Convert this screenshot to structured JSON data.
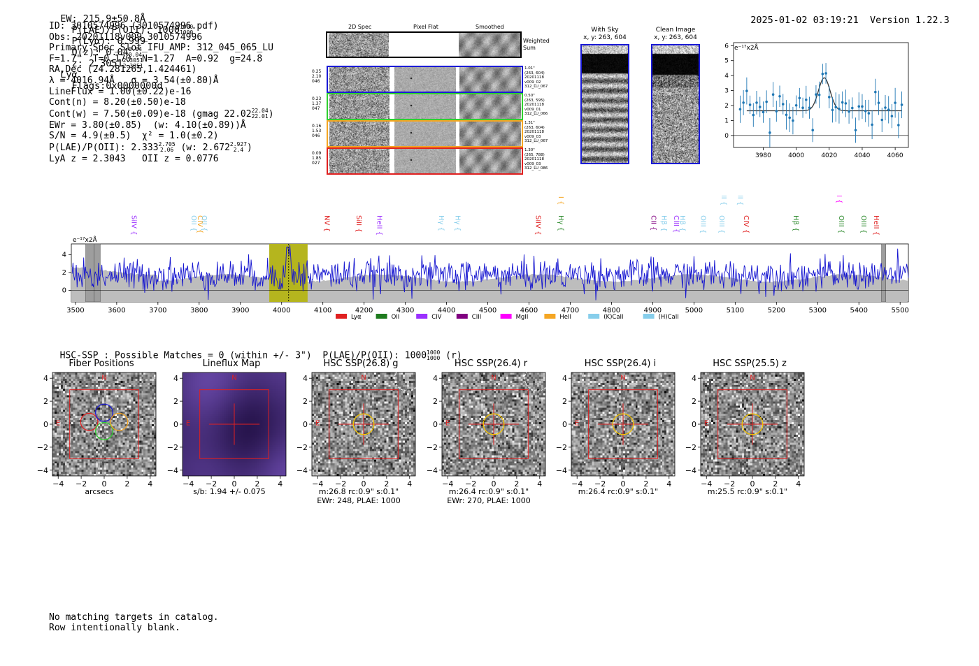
{
  "header": {
    "ew": "EW: 215.9±50.8Å",
    "plae_label": "P(LAE)/P(OII): 1000",
    "plae_hi": "1000",
    "plae_lo": "1000",
    "plya": "P(Lyα): 0.999",
    "qz_label": "Q(z): 0.04",
    "qz_hi": "0.04",
    "qz_lo": "0.04",
    "z_label": "z: 2.3051",
    "z_hi": "2.3051",
    "z_lo": "2.3051",
    "z_line": "Lyα",
    "flags": "Flags:0x0000000d",
    "timestamp": "2025-01-02 03:19:21",
    "version": "Version 1.22.3"
  },
  "info": {
    "lines": [
      "ID: 3010574996 (3010574996.pdf)",
      "Obs: 20201118v009_3010574996",
      "Primary Spec_Slot_IFU_AMP: 312_045_065_LU",
      "F=1.7\"  T=0.170  N=1.27  A=0.92  g=24.8",
      "RA,Dec (24.281265,1.424461)",
      "λ = 4016.94Å   σ = 3.54(±0.80)Å",
      "LineFlux = 1.00(±0.22)e-16",
      "Cont(n) = 8.20(±0.50)e-18",
      "Cont(w) = 7.50(±0.09)e-18 (gmag 22.02",
      "EWr = 3.80(±0.85)  (w: 4.10(±0.89))Å",
      "S/N = 4.9(±0.5)  χ² = 1.0(±0.2)",
      "P(LAE)/P(OII): 2.333",
      "LyA z = 2.3043   OII z = 0.0776"
    ],
    "gmag_hi": "22.04",
    "gmag_lo": "22.01",
    "plae_hi": "2.705",
    "plae_lo": "2.06",
    "plae_w": "(w: 2.672",
    "plae_w_hi": "2.927",
    "plae_w_lo": "2.4",
    "plae_w_close": ")"
  },
  "spec2d": {
    "col_titles": [
      "2D Spec",
      "Pixel Flat",
      "Smoothed"
    ],
    "weighted_sum": "Weighted Sum",
    "rows": [
      {
        "left": "0.25\n2.10\n046",
        "right": "1.01\"\n(263, 604)\n20201118\nv009_02\n312_LU_067",
        "color": "#1a1ad6"
      },
      {
        "left": "0.23\n1.37\n047",
        "right": "0.50\"\n(263, 595)\n20201118\nv009_01\n312_LU_066",
        "color": "#2fd02f"
      },
      {
        "left": "0.16\n1.53\n046",
        "right": "1.31\"\n(263, 604)\n20201118\nv009_03\n312_LU_067",
        "color": "#f5a623"
      },
      {
        "left": "0.09\n1.85\n027",
        "right": "1.30\"\n(265, 788)\n20201118\nv009_03\n312_LU_086",
        "color": "#e02020"
      }
    ]
  },
  "sky": {
    "with_sky_title": "With Sky",
    "with_sky_xy": "x, y: 263, 604",
    "clean_title": "Clean Image",
    "clean_xy": "x, y: 263, 604"
  },
  "zoom_plot": {
    "unit_label": "e⁻¹⁷x2Å",
    "x_ticks": [
      "3980",
      "4000",
      "4020",
      "4040",
      "4060"
    ],
    "y_ticks": [
      "0",
      "1",
      "2",
      "3",
      "4",
      "5",
      "6"
    ]
  },
  "full_spec": {
    "unit_label": "e⁻¹⁷x2Å",
    "x_ticks": [
      "3500",
      "3600",
      "3700",
      "3800",
      "3900",
      "4000",
      "4100",
      "4200",
      "4300",
      "4400",
      "4500",
      "4600",
      "4700",
      "4800",
      "4900",
      "5000",
      "5100",
      "5200",
      "5300",
      "5400",
      "5500"
    ],
    "y_ticks": [
      "0",
      "2",
      "4"
    ],
    "line_labels": [
      {
        "text": "SiIV",
        "w": 3630,
        "color": "#9b30ff",
        "tier": 1
      },
      {
        "text": "OII",
        "w": 3775,
        "color": "#87ceeb",
        "tier": 1
      },
      {
        "text": "CIV",
        "w": 3790,
        "color": "#f5a623",
        "tier": 1
      },
      {
        "text": "OII",
        "w": 3800,
        "color": "#87ceeb",
        "tier": 1
      },
      {
        "text": "NV",
        "w": 4098,
        "color": "#e02020",
        "tier": 1
      },
      {
        "text": "SiII",
        "w": 4175,
        "color": "#e02020",
        "tier": 1
      },
      {
        "text": "HeII",
        "w": 4225,
        "color": "#9b30ff",
        "tier": 1
      },
      {
        "text": "Hγ",
        "w": 4375,
        "color": "#87ceeb",
        "tier": 1
      },
      {
        "text": "Hγ",
        "w": 4415,
        "color": "#87ceeb",
        "tier": 1
      },
      {
        "text": "SiIV",
        "w": 4610,
        "color": "#e02020",
        "tier": 1
      },
      {
        "text": "Hγ",
        "w": 4665,
        "color": "#2e8b2e",
        "tier": 1
      },
      {
        "text": "CIII",
        "w": 4665,
        "color": "#f5a623",
        "tier": 0
      },
      {
        "text": "CII",
        "w": 4890,
        "color": "#800080",
        "tier": 1
      },
      {
        "text": "Hβ",
        "w": 4915,
        "color": "#87ceeb",
        "tier": 1
      },
      {
        "text": "CIII",
        "w": 4945,
        "color": "#9b30ff",
        "tier": 1
      },
      {
        "text": "Hβ",
        "w": 4960,
        "color": "#87ceeb",
        "tier": 1
      },
      {
        "text": "OIII",
        "w": 5010,
        "color": "#87ceeb",
        "tier": 1
      },
      {
        "text": "OIII",
        "w": 5055,
        "color": "#87ceeb",
        "tier": 1
      },
      {
        "text": "OIII",
        "w": 5060,
        "color": "#87ceeb",
        "tier": 0
      },
      {
        "text": "OIII",
        "w": 5100,
        "color": "#87ceeb",
        "tier": 0
      },
      {
        "text": "CIV",
        "w": 5115,
        "color": "#e02020",
        "tier": 1
      },
      {
        "text": "Hβ",
        "w": 5235,
        "color": "#2e8b2e",
        "tier": 1
      },
      {
        "text": "OIII",
        "w": 5345,
        "color": "#2e8b2e",
        "tier": 1
      },
      {
        "text": "OII",
        "w": 5340,
        "color": "#ff00ff",
        "tier": 0
      },
      {
        "text": "OIII",
        "w": 5400,
        "color": "#2e8b2e",
        "tier": 1
      },
      {
        "text": "HeII",
        "w": 5430,
        "color": "#e02020",
        "tier": 1
      }
    ],
    "legend": [
      {
        "label": "Lyα",
        "color": "#e02020"
      },
      {
        "label": "OII",
        "color": "#1e7b1e"
      },
      {
        "label": "CIV",
        "color": "#9b30ff"
      },
      {
        "label": "CIII",
        "color": "#800080"
      },
      {
        "label": "MgII",
        "color": "#ff00ff"
      },
      {
        "label": "HeII",
        "color": "#f5a623"
      },
      {
        "label": "(K)CaII",
        "color": "#87ceeb"
      },
      {
        "label": "(H)CaII",
        "color": "#87ceeb"
      }
    ]
  },
  "hsc": {
    "summary": "HSC-SSP : Possible Matches = 0 (within +/- 3\")  P(LAE)/P(OII): 1000",
    "summary_hi": "1000",
    "summary_lo": "1000",
    "summary_suffix": "(r)",
    "panels": [
      {
        "title": "Fiber Positions",
        "foot": "arcsecs",
        "foot2": ""
      },
      {
        "title": "Lineflux Map",
        "foot": "s/b: 1.94 +/- 0.075",
        "foot2": ""
      },
      {
        "title": "HSC SSP(26.8) g",
        "foot": "m:26.8 rc:0.9\"  s:0.1\"",
        "foot2": "EWr: 248, PLAE: 1000"
      },
      {
        "title": "HSC SSP(26.4) r",
        "foot": "m:26.4 rc:0.9\"  s:0.1\"",
        "foot2": "EWr: 270, PLAE: 1000"
      },
      {
        "title": "HSC SSP(26.4) i",
        "foot": "m:26.4 rc:0.9\"  s:0.1\"",
        "foot2": ""
      },
      {
        "title": "HSC SSP(25.5) z",
        "foot": "m:25.5 rc:0.9\"  s:0.1\"",
        "foot2": ""
      }
    ],
    "x_ticks": [
      "−4",
      "−2",
      "0",
      "2",
      "4"
    ],
    "y_ticks": [
      "4",
      "2",
      "0",
      "−2",
      "−4"
    ],
    "north": "N",
    "east": "E"
  },
  "footer": {
    "line1": "No matching targets in catalog.",
    "line2": "Row intentionally blank."
  }
}
